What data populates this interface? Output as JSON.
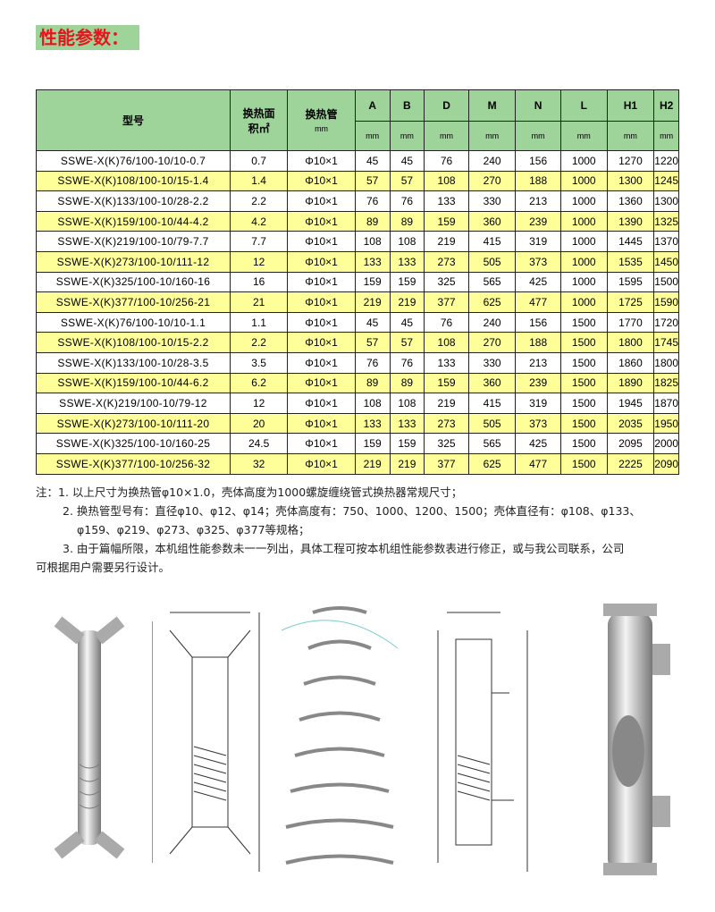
{
  "title": "性能参数：",
  "table": {
    "headers": {
      "model": "型号",
      "area": "换热面",
      "area2": "积㎡",
      "tube": "换热管",
      "tube_unit": "mm",
      "dims": [
        "A",
        "B",
        "D",
        "M",
        "N",
        "L",
        "H1",
        "H2"
      ],
      "unit": "mm"
    },
    "rows": [
      [
        "SSWE-X(K)76/100-10/10-0.7",
        "0.7",
        "Φ10×1",
        "45",
        "45",
        "76",
        "240",
        "156",
        "1000",
        "1270",
        "1220"
      ],
      [
        "SSWE-X(K)108/100-10/15-1.4",
        "1.4",
        "Φ10×1",
        "57",
        "57",
        "108",
        "270",
        "188",
        "1000",
        "1300",
        "1245"
      ],
      [
        "SSWE-X(K)133/100-10/28-2.2",
        "2.2",
        "Φ10×1",
        "76",
        "76",
        "133",
        "330",
        "213",
        "1000",
        "1360",
        "1300"
      ],
      [
        "SSWE-X(K)159/100-10/44-4.2",
        "4.2",
        "Φ10×1",
        "89",
        "89",
        "159",
        "360",
        "239",
        "1000",
        "1390",
        "1325"
      ],
      [
        "SSWE-X(K)219/100-10/79-7.7",
        "7.7",
        "Φ10×1",
        "108",
        "108",
        "219",
        "415",
        "319",
        "1000",
        "1445",
        "1370"
      ],
      [
        "SSWE-X(K)273/100-10/111-12",
        "12",
        "Φ10×1",
        "133",
        "133",
        "273",
        "505",
        "373",
        "1000",
        "1535",
        "1450"
      ],
      [
        "SSWE-X(K)325/100-10/160-16",
        "16",
        "Φ10×1",
        "159",
        "159",
        "325",
        "565",
        "425",
        "1000",
        "1595",
        "1500"
      ],
      [
        "SSWE-X(K)377/100-10/256-21",
        "21",
        "Φ10×1",
        "219",
        "219",
        "377",
        "625",
        "477",
        "1000",
        "1725",
        "1590"
      ],
      [
        "SSWE-X(K)76/100-10/10-1.1",
        "1.1",
        "Φ10×1",
        "45",
        "45",
        "76",
        "240",
        "156",
        "1500",
        "1770",
        "1720"
      ],
      [
        "SSWE-X(K)108/100-10/15-2.2",
        "2.2",
        "Φ10×1",
        "57",
        "57",
        "108",
        "270",
        "188",
        "1500",
        "1800",
        "1745"
      ],
      [
        "SSWE-X(K)133/100-10/28-3.5",
        "3.5",
        "Φ10×1",
        "76",
        "76",
        "133",
        "330",
        "213",
        "1500",
        "1860",
        "1800"
      ],
      [
        "SSWE-X(K)159/100-10/44-6.2",
        "6.2",
        "Φ10×1",
        "89",
        "89",
        "159",
        "360",
        "239",
        "1500",
        "1890",
        "1825"
      ],
      [
        "SSWE-X(K)219/100-10/79-12",
        "12",
        "Φ10×1",
        "108",
        "108",
        "219",
        "415",
        "319",
        "1500",
        "1945",
        "1870"
      ],
      [
        "SSWE-X(K)273/100-10/111-20",
        "20",
        "Φ10×1",
        "133",
        "133",
        "273",
        "505",
        "373",
        "1500",
        "2035",
        "1950"
      ],
      [
        "SSWE-X(K)325/100-10/160-25",
        "24.5",
        "Φ10×1",
        "159",
        "159",
        "325",
        "565",
        "425",
        "1500",
        "2095",
        "2000"
      ],
      [
        "SSWE-X(K)377/100-10/256-32",
        "32",
        "Φ10×1",
        "219",
        "219",
        "377",
        "625",
        "477",
        "1500",
        "2225",
        "2090"
      ]
    ]
  },
  "notes": [
    "注：1. 以上尺寸为换热管φ10×1.0，壳体高度为1000螺旋缠绕管式换热器常规尺寸；",
    "2. 换热管型号有：直径φ10、φ12、φ14；壳体高度有：750、1000、1200、1500；壳体直径有：φ108、φ133、",
    "φ159、φ219、φ273、φ325、φ377等规格；",
    "3. 由于篇幅所限，本机组性能参数未一一列出，具体工程可按本机组性能参数表进行修正，或与我公司联系，公司",
    "可根据用户需要另行设计。"
  ],
  "colors": {
    "header_green": "#9ed39a",
    "row_yellow": "#ffff99",
    "title_red": "#e8141b"
  }
}
